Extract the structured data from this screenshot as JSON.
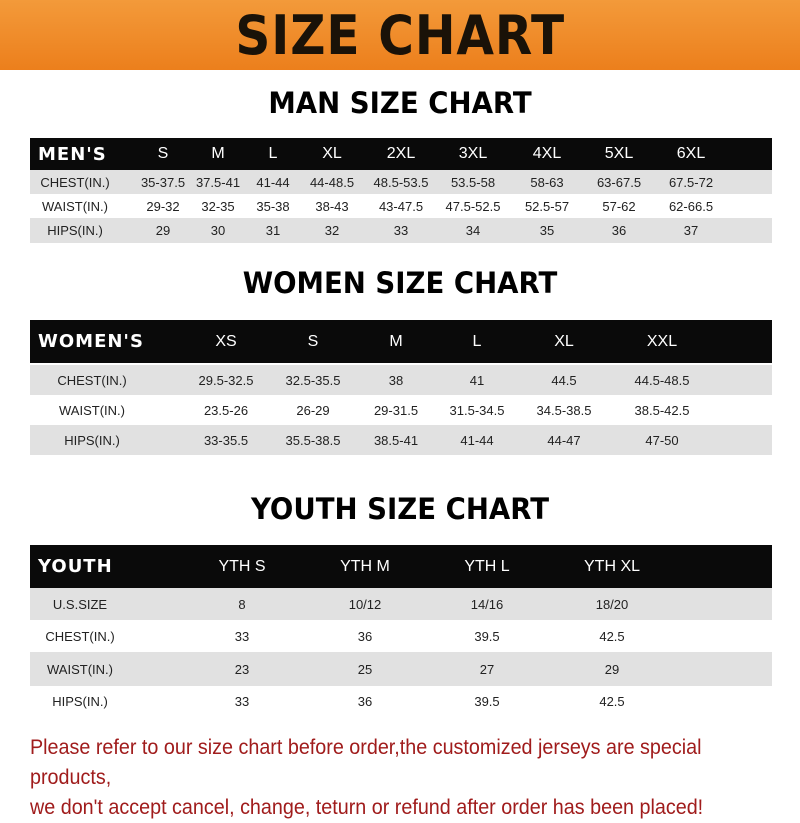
{
  "banner": {
    "title": "SIZE CHART"
  },
  "men": {
    "title": "MAN SIZE CHART",
    "header": [
      "MEN'S",
      "S",
      "M",
      "L",
      "XL",
      "2XL",
      "3XL",
      "4XL",
      "5XL",
      "6XL"
    ],
    "rows": [
      [
        "CHEST(IN.)",
        "35-37.5",
        "37.5-41",
        "41-44",
        "44-48.5",
        "48.5-53.5",
        "53.5-58",
        "58-63",
        "63-67.5",
        "67.5-72"
      ],
      [
        "WAIST(IN.)",
        "29-32",
        "32-35",
        "35-38",
        "38-43",
        "43-47.5",
        "47.5-52.5",
        "52.5-57",
        "57-62",
        "62-66.5"
      ],
      [
        "HIPS(IN.)",
        "29",
        "30",
        "31",
        "32",
        "33",
        "34",
        "35",
        "36",
        "37"
      ]
    ]
  },
  "women": {
    "title": "WOMEN SIZE CHART",
    "header": [
      "WOMEN'S",
      "XS",
      "S",
      "M",
      "L",
      "XL",
      "XXL"
    ],
    "rows": [
      [
        "CHEST(IN.)",
        "29.5-32.5",
        "32.5-35.5",
        "38",
        "41",
        "44.5",
        "44.5-48.5"
      ],
      [
        "WAIST(IN.)",
        "23.5-26",
        "26-29",
        "29-31.5",
        "31.5-34.5",
        "34.5-38.5",
        "38.5-42.5"
      ],
      [
        "HIPS(IN.)",
        "33-35.5",
        "35.5-38.5",
        "38.5-41",
        "41-44",
        "44-47",
        "47-50"
      ]
    ]
  },
  "youth": {
    "title": "YOUTH SIZE CHART",
    "header": [
      "YOUTH",
      "YTH S",
      "YTH M",
      "YTH L",
      "YTH XL"
    ],
    "rows": [
      [
        "U.S.SIZE",
        "8",
        "10/12",
        "14/16",
        "18/20"
      ],
      [
        "CHEST(IN.)",
        "33",
        "36",
        "39.5",
        "42.5"
      ],
      [
        "WAIST(IN.)",
        "23",
        "25",
        "27",
        "29"
      ],
      [
        "HIPS(IN.)",
        "33",
        "36",
        "39.5",
        "42.5"
      ]
    ]
  },
  "note": {
    "line1": "Please refer to our size chart before order,the customized jerseys are special products,",
    "line2": "we don't accept cancel, change, teturn or refund after order has been placed!"
  },
  "colors": {
    "banner": "#ec7f1c",
    "header": "#0a0a0a",
    "stripe": "#e1e1e1",
    "note": "#a01c1c"
  }
}
